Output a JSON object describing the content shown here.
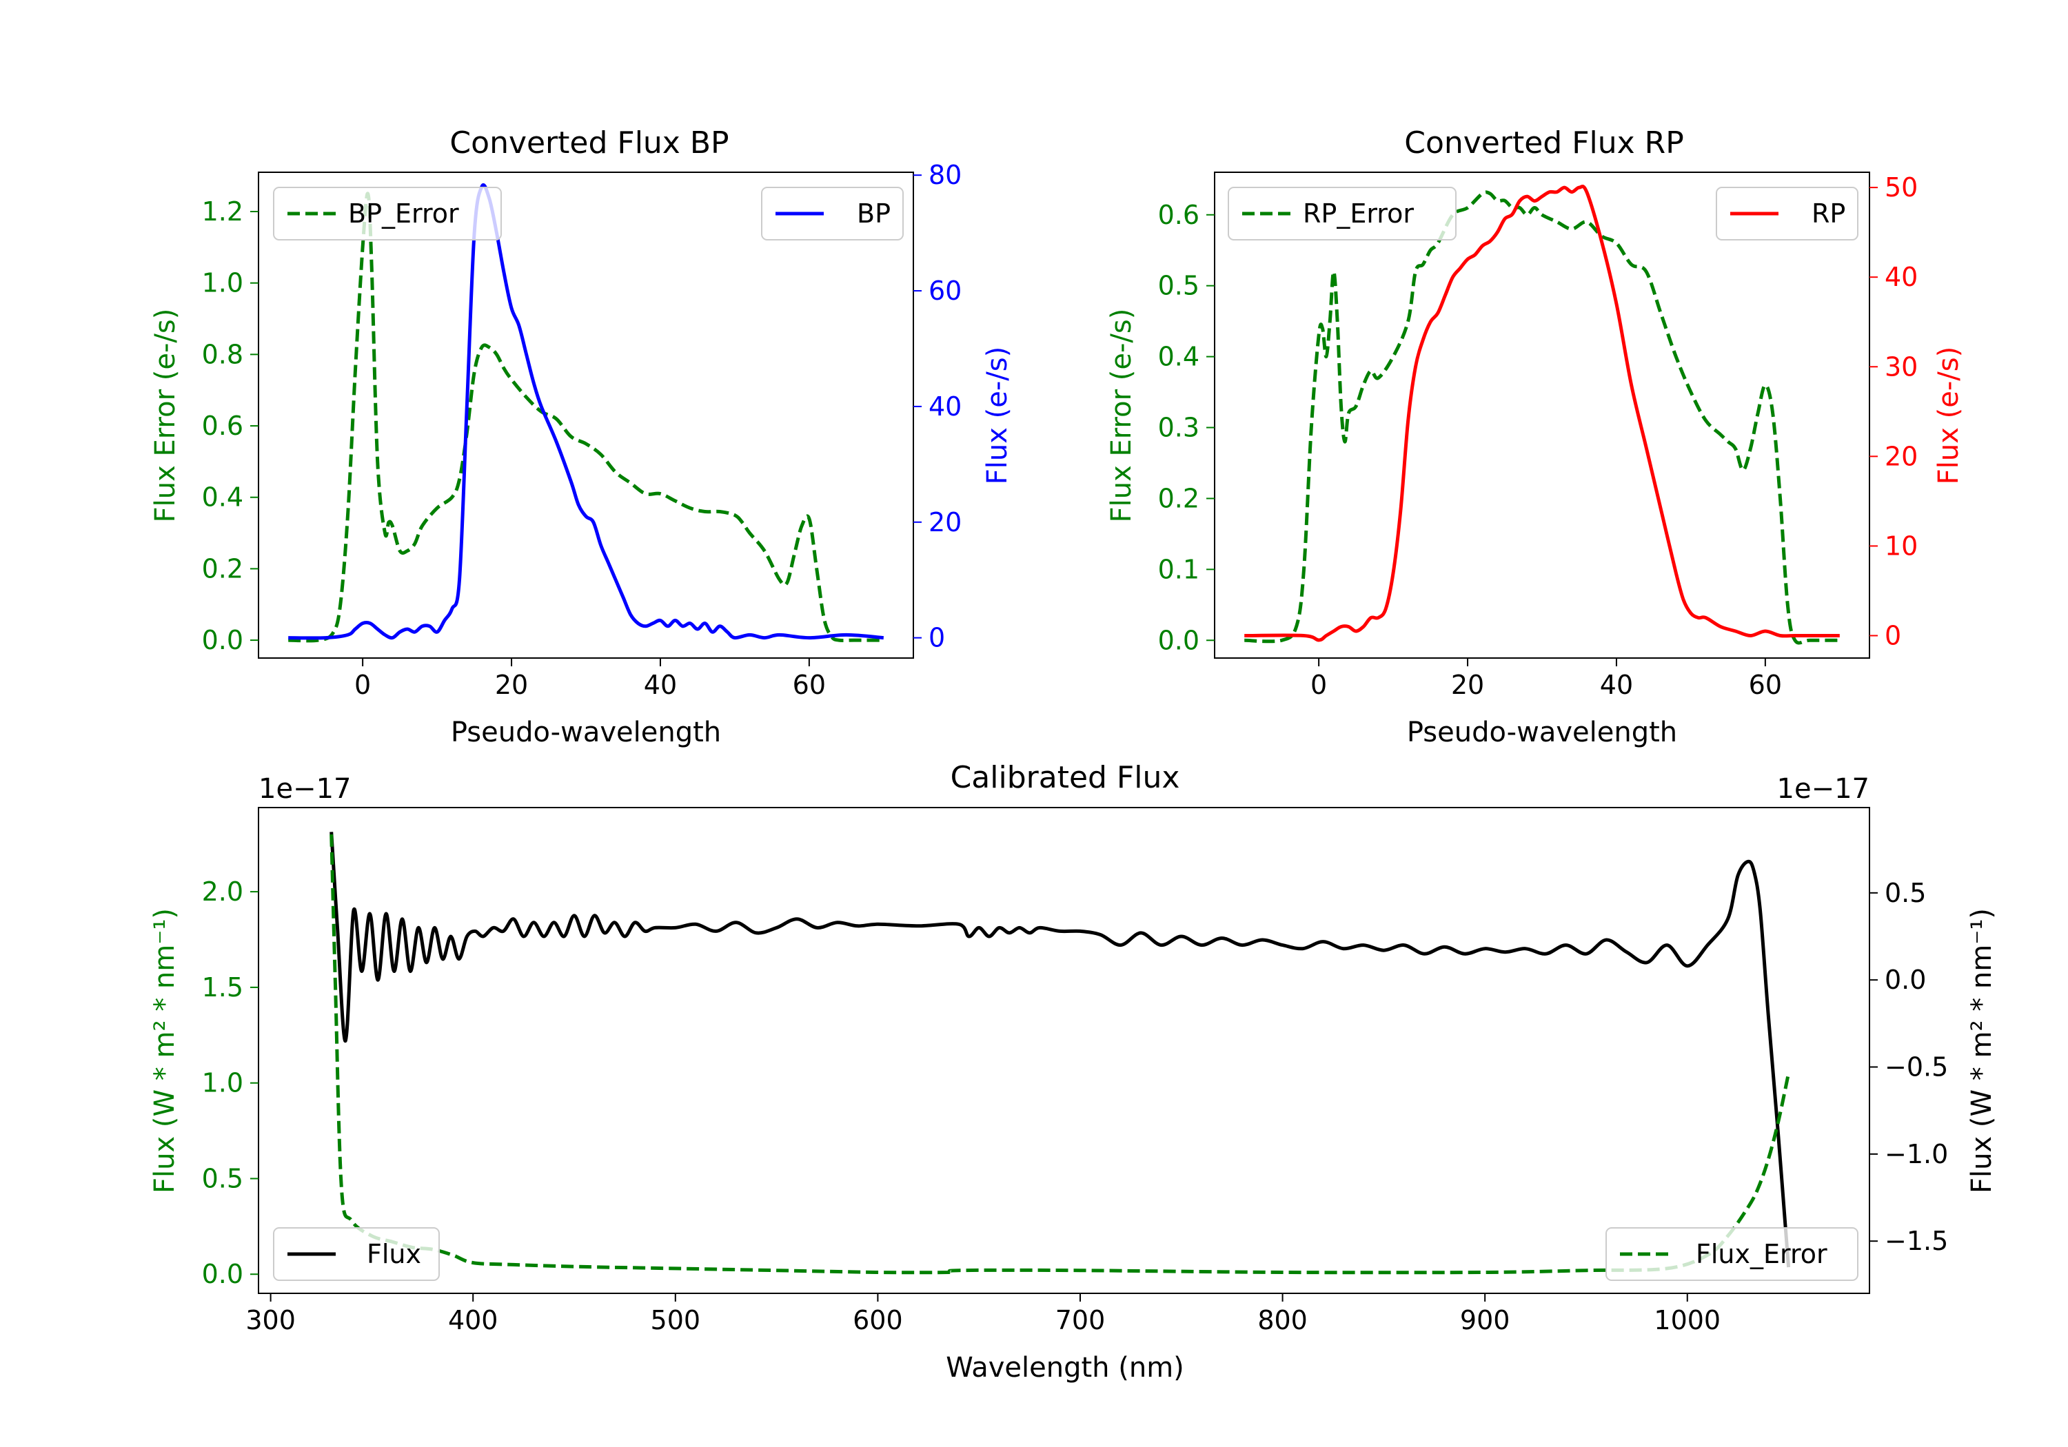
{
  "chart_data": [
    {
      "type": "line",
      "title": "Converted Flux BP",
      "xlabel": "Pseudo-wavelength",
      "ylabel_left": "Flux Error (e-/s)",
      "ylabel_right": "Flux (e-/s)",
      "xlim": [
        -14,
        74
      ],
      "ylim_left": [
        -0.05,
        1.31
      ],
      "ylim_right": [
        -3.5,
        80.5
      ],
      "xticks": [
        "0",
        "20",
        "40",
        "60"
      ],
      "yticks_left": [
        "0.0",
        "0.2",
        "0.4",
        "0.6",
        "0.8",
        "1.0",
        "1.2"
      ],
      "yticks_right": [
        "0",
        "20",
        "40",
        "60",
        "80"
      ],
      "colors": {
        "left": "#008000",
        "right": "#0000ff"
      },
      "series": [
        {
          "name": "BP_Error",
          "axis": "left",
          "style": "dashed",
          "color": "#008000",
          "legend_pos": "top-left",
          "x": [
            -10,
            -6,
            -4,
            -3,
            -2,
            -1,
            0,
            0.7,
            1.2,
            2,
            3,
            3.5,
            4,
            5,
            6,
            7,
            8,
            10,
            12,
            13,
            14,
            15,
            16,
            17,
            18,
            19,
            20,
            22,
            24,
            26,
            28,
            30,
            32,
            34,
            36,
            38,
            40,
            42,
            44,
            46,
            48,
            50,
            51,
            52,
            54,
            56,
            57,
            58,
            59,
            60,
            61,
            62,
            63,
            64,
            66,
            70
          ],
          "y": [
            0.0,
            0.0,
            0.02,
            0.1,
            0.35,
            0.75,
            1.1,
            1.25,
            1.05,
            0.5,
            0.3,
            0.33,
            0.32,
            0.25,
            0.25,
            0.27,
            0.32,
            0.37,
            0.4,
            0.45,
            0.58,
            0.75,
            0.82,
            0.82,
            0.8,
            0.76,
            0.73,
            0.68,
            0.64,
            0.62,
            0.57,
            0.55,
            0.52,
            0.47,
            0.44,
            0.41,
            0.41,
            0.39,
            0.37,
            0.36,
            0.36,
            0.35,
            0.33,
            0.3,
            0.25,
            0.17,
            0.16,
            0.24,
            0.32,
            0.34,
            0.2,
            0.06,
            0.01,
            0.0,
            0.0,
            0.0
          ]
        },
        {
          "name": "BP",
          "axis": "right",
          "style": "solid",
          "color": "#0000ff",
          "legend_pos": "top-right",
          "x": [
            -10,
            -5,
            -2,
            -1,
            0,
            1,
            2,
            3,
            4,
            5,
            6,
            7,
            8,
            9,
            10,
            11,
            12,
            13,
            14,
            15,
            16,
            17,
            18,
            19,
            20,
            21,
            22,
            23,
            24,
            26,
            28,
            29,
            30,
            31,
            32,
            33,
            34,
            35,
            36,
            37,
            38,
            39,
            40,
            41,
            42,
            43,
            44,
            45,
            46,
            47,
            48,
            49,
            50,
            52,
            54,
            56,
            60,
            65,
            70
          ],
          "y": [
            0.0,
            0.0,
            0.5,
            1.5,
            2.5,
            2.5,
            1.5,
            0.5,
            0.0,
            1.0,
            1.5,
            1.0,
            2.0,
            2.0,
            1.0,
            3.0,
            5.0,
            10.0,
            40.0,
            70.0,
            78.0,
            76.0,
            70.0,
            63.0,
            57.0,
            54.0,
            49.0,
            44.0,
            40.0,
            34.0,
            27.0,
            23.0,
            21.0,
            20.0,
            16.0,
            13.0,
            10.0,
            7.0,
            4.0,
            2.5,
            2.0,
            2.5,
            3.0,
            2.0,
            3.0,
            2.0,
            2.5,
            1.5,
            2.5,
            1.0,
            2.0,
            1.0,
            0.0,
            0.5,
            0.0,
            0.5,
            0.0,
            0.5,
            0.0
          ]
        }
      ]
    },
    {
      "type": "line",
      "title": "Converted Flux RP",
      "xlabel": "Pseudo-wavelength",
      "ylabel_left": "Flux Error (e-/s)",
      "ylabel_right": "Flux (e-/s)",
      "xlim": [
        -14,
        74
      ],
      "ylim_left": [
        -0.025,
        0.66
      ],
      "ylim_right": [
        -2.5,
        51.7
      ],
      "xticks": [
        "0",
        "20",
        "40",
        "60"
      ],
      "yticks_left": [
        "0.0",
        "0.1",
        "0.2",
        "0.3",
        "0.4",
        "0.5",
        "0.6"
      ],
      "yticks_right": [
        "0",
        "10",
        "20",
        "30",
        "40",
        "50"
      ],
      "colors": {
        "left": "#008000",
        "right": "#ff0000"
      },
      "series": [
        {
          "name": "RP_Error",
          "axis": "left",
          "style": "dashed",
          "color": "#008000",
          "legend_pos": "top-left",
          "x": [
            -10,
            -5,
            -3,
            -2,
            -1,
            0,
            0.5,
            1,
            1.5,
            2,
            2.5,
            3,
            3.5,
            4,
            5,
            6,
            7,
            8,
            10,
            12,
            13,
            14,
            15,
            16,
            18,
            20,
            22,
            23,
            24,
            25,
            26,
            27,
            28,
            29,
            30,
            32,
            34,
            36,
            38,
            40,
            42,
            44,
            46,
            48,
            50,
            52,
            54,
            55,
            56,
            57,
            58,
            59,
            60,
            61,
            62,
            63,
            64,
            66,
            70
          ],
          "y": [
            0.0,
            0.0,
            0.02,
            0.1,
            0.3,
            0.43,
            0.44,
            0.4,
            0.45,
            0.52,
            0.45,
            0.33,
            0.28,
            0.32,
            0.33,
            0.36,
            0.38,
            0.37,
            0.4,
            0.45,
            0.52,
            0.53,
            0.55,
            0.56,
            0.6,
            0.61,
            0.63,
            0.63,
            0.62,
            0.62,
            0.61,
            0.61,
            0.6,
            0.61,
            0.6,
            0.59,
            0.58,
            0.59,
            0.57,
            0.56,
            0.53,
            0.52,
            0.46,
            0.4,
            0.35,
            0.31,
            0.29,
            0.28,
            0.27,
            0.24,
            0.27,
            0.32,
            0.36,
            0.32,
            0.2,
            0.05,
            0.0,
            0.0,
            0.0
          ]
        },
        {
          "name": "RP",
          "axis": "right",
          "style": "solid",
          "color": "#ff0000",
          "legend_pos": "top-right",
          "x": [
            -10,
            -2,
            0,
            1,
            2,
            3,
            4,
            5,
            6,
            7,
            8,
            9,
            10,
            11,
            12,
            13,
            14,
            15,
            16,
            17,
            18,
            19,
            20,
            21,
            22,
            23,
            24,
            25,
            26,
            27,
            28,
            29,
            30,
            31,
            32,
            33,
            34,
            35,
            36,
            38,
            40,
            42,
            44,
            46,
            48,
            49,
            50,
            51,
            52,
            54,
            56,
            58,
            60,
            62,
            64,
            70
          ],
          "y": [
            0.0,
            0.0,
            -0.5,
            0.0,
            0.5,
            1.0,
            1.0,
            0.5,
            1.0,
            2.0,
            2.0,
            3.0,
            7.0,
            14.0,
            24.0,
            30.0,
            33.0,
            35.0,
            36.0,
            38.0,
            40.0,
            41.0,
            42.0,
            42.5,
            43.5,
            44.0,
            45.0,
            46.5,
            47.0,
            48.5,
            49.0,
            48.5,
            49.0,
            49.5,
            49.5,
            50.0,
            49.5,
            50.0,
            49.5,
            44.0,
            37.0,
            28.0,
            21.0,
            14.0,
            7.0,
            4.0,
            2.5,
            2.0,
            2.0,
            1.0,
            0.5,
            0.0,
            0.5,
            0.0,
            0.0,
            0.0
          ]
        }
      ]
    },
    {
      "type": "line",
      "title": "Calibrated Flux",
      "xlabel": "Wavelength (nm)",
      "ylabel_left": "Flux (W * m² * nm⁻¹)",
      "ylabel_right": "Flux (W * m² * nm⁻¹)",
      "offset_left": "1e−17",
      "offset_right": "1e−17",
      "xlim": [
        294,
        1090
      ],
      "ylim_left": [
        -0.1,
        2.44
      ],
      "ylim_right": [
        -1.8,
        0.99
      ],
      "xticks": [
        "300",
        "400",
        "500",
        "600",
        "700",
        "800",
        "900",
        "1000"
      ],
      "yticks_left": [
        "0.0",
        "0.5",
        "1.0",
        "1.5",
        "2.0"
      ],
      "yticks_right": [
        "0.5",
        "0.0",
        "−0.5",
        "−1.0",
        "−1.5"
      ],
      "colors": {
        "left": "#008000",
        "right": "#000000"
      },
      "series": [
        {
          "name": "Flux",
          "axis": "right",
          "style": "solid",
          "color": "#000000",
          "legend_pos": "bottom-left",
          "x": [
            330,
            333,
            337,
            341,
            345,
            349,
            353,
            357,
            361,
            365,
            369,
            373,
            377,
            381,
            385,
            389,
            393,
            397,
            401,
            405,
            410,
            415,
            420,
            425,
            430,
            435,
            440,
            445,
            450,
            455,
            460,
            465,
            470,
            475,
            480,
            485,
            490,
            500,
            510,
            520,
            530,
            540,
            550,
            560,
            570,
            580,
            590,
            600,
            620,
            640,
            645,
            650,
            655,
            660,
            665,
            670,
            675,
            680,
            690,
            700,
            710,
            720,
            730,
            740,
            750,
            760,
            770,
            780,
            790,
            800,
            810,
            820,
            830,
            840,
            850,
            860,
            870,
            880,
            890,
            900,
            910,
            920,
            930,
            940,
            950,
            960,
            970,
            980,
            990,
            1000,
            1010,
            1020,
            1025,
            1030,
            1033,
            1036,
            1040,
            1045,
            1050
          ],
          "y": [
            0.85,
            0.3,
            -0.35,
            0.4,
            0.05,
            0.38,
            0.0,
            0.38,
            0.05,
            0.35,
            0.05,
            0.3,
            0.1,
            0.3,
            0.12,
            0.25,
            0.12,
            0.25,
            0.28,
            0.25,
            0.3,
            0.28,
            0.35,
            0.25,
            0.33,
            0.25,
            0.33,
            0.25,
            0.37,
            0.25,
            0.37,
            0.27,
            0.33,
            0.25,
            0.33,
            0.28,
            0.3,
            0.3,
            0.32,
            0.28,
            0.33,
            0.27,
            0.3,
            0.35,
            0.3,
            0.33,
            0.31,
            0.32,
            0.31,
            0.32,
            0.25,
            0.3,
            0.25,
            0.3,
            0.27,
            0.3,
            0.27,
            0.3,
            0.28,
            0.28,
            0.26,
            0.2,
            0.27,
            0.2,
            0.25,
            0.2,
            0.24,
            0.2,
            0.23,
            0.2,
            0.18,
            0.22,
            0.18,
            0.2,
            0.17,
            0.2,
            0.15,
            0.19,
            0.15,
            0.18,
            0.16,
            0.18,
            0.15,
            0.2,
            0.15,
            0.23,
            0.16,
            0.1,
            0.2,
            0.08,
            0.2,
            0.35,
            0.6,
            0.68,
            0.62,
            0.4,
            -0.2,
            -0.9,
            -1.65
          ]
        },
        {
          "name": "Flux_Error",
          "axis": "left",
          "style": "dashed",
          "color": "#008000",
          "legend_pos": "bottom-right",
          "x": [
            330,
            332,
            335,
            340,
            350,
            360,
            370,
            380,
            390,
            400,
            420,
            450,
            500,
            550,
            600,
            635,
            640,
            700,
            800,
            900,
            950,
            990,
            1010,
            1020,
            1030,
            1035,
            1040,
            1045,
            1050
          ],
          "y": [
            2.3,
            1.5,
            0.45,
            0.28,
            0.2,
            0.17,
            0.14,
            0.13,
            0.1,
            0.06,
            0.05,
            0.04,
            0.03,
            0.02,
            0.01,
            0.01,
            0.02,
            0.02,
            0.01,
            0.01,
            0.02,
            0.03,
            0.1,
            0.2,
            0.35,
            0.45,
            0.6,
            0.8,
            1.05
          ]
        }
      ]
    }
  ]
}
